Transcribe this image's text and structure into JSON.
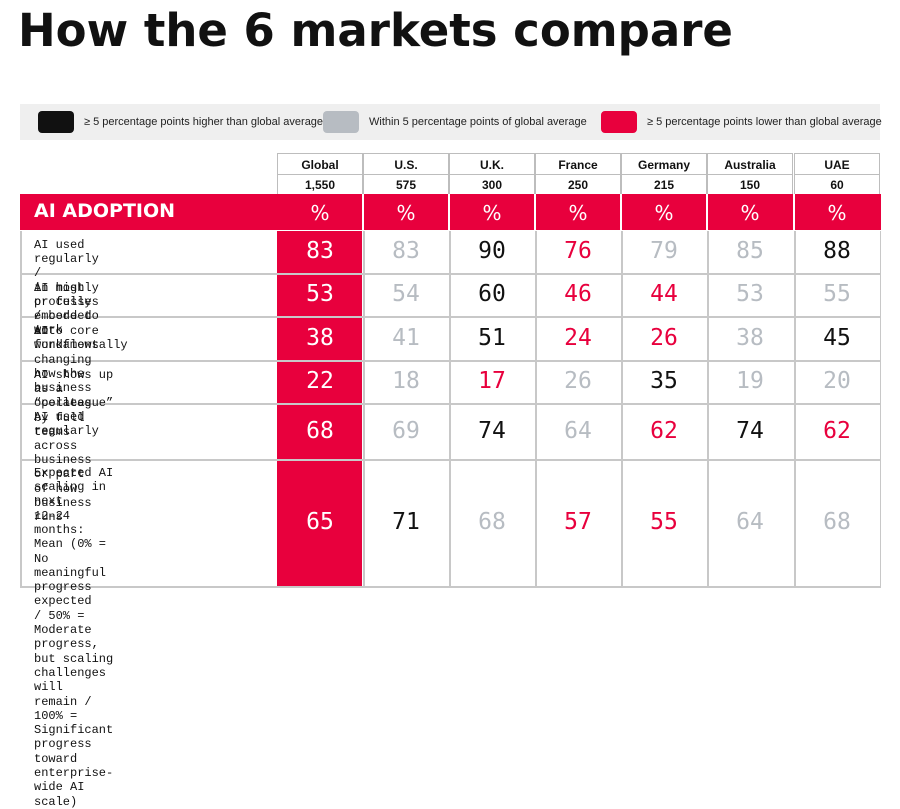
{
  "title": "How the 6 markets compare",
  "legend": [
    {
      "label": "≥ 5 percentage points higher than global average",
      "color": "#111111"
    },
    {
      "label": "Within 5 percentage points of global average",
      "color": "#b7bcc2"
    },
    {
      "label": "≥ 5 percentage points lower than global average",
      "color": "#e8003d"
    }
  ],
  "section_label": "AI ADOPTION",
  "unit": "%",
  "colors": {
    "accent": "#e8003d",
    "above": "#111111",
    "within": "#b7bcc2",
    "below": "#e8003d"
  },
  "chart_data": {
    "type": "table",
    "columns": [
      {
        "market": "Global",
        "n": "1,550"
      },
      {
        "market": "U.S.",
        "n": "575"
      },
      {
        "market": "U.K.",
        "n": "300"
      },
      {
        "market": "France",
        "n": "250"
      },
      {
        "market": "Germany",
        "n": "215"
      },
      {
        "market": "Australia",
        "n": "150"
      },
      {
        "market": "UAE",
        "n": "60"
      }
    ],
    "rows": [
      {
        "label": "AI used regularly /\nin most processes / core to work",
        "values": [
          83,
          83,
          90,
          76,
          79,
          85,
          88
        ]
      },
      {
        "label": "AI highly or fully\nembedded into core workflows",
        "values": [
          53,
          54,
          60,
          46,
          44,
          53,
          55
        ]
      },
      {
        "label": "AI fundamentally changing\nhow the business operates",
        "values": [
          38,
          41,
          51,
          24,
          26,
          38,
          45
        ]
      },
      {
        "label": "AI shows up as a\n“colleague” by full teams",
        "values": [
          22,
          18,
          17,
          26,
          35,
          19,
          20
        ]
      },
      {
        "label": "AI used regularly across\nbusiness or part of how\nbusiness runs",
        "values": [
          68,
          69,
          74,
          64,
          62,
          74,
          62
        ]
      },
      {
        "label": "Expected AI scaling in next\n12–24 months: Mean (0% = No\nmeaningful progress expected\n/ 50% = Moderate progress,\nbut scaling challenges will\nremain / 100% = Significant\nprogress toward enterprise-\nwide AI scale)",
        "values": [
          65,
          71,
          68,
          57,
          55,
          64,
          68
        ]
      }
    ]
  }
}
